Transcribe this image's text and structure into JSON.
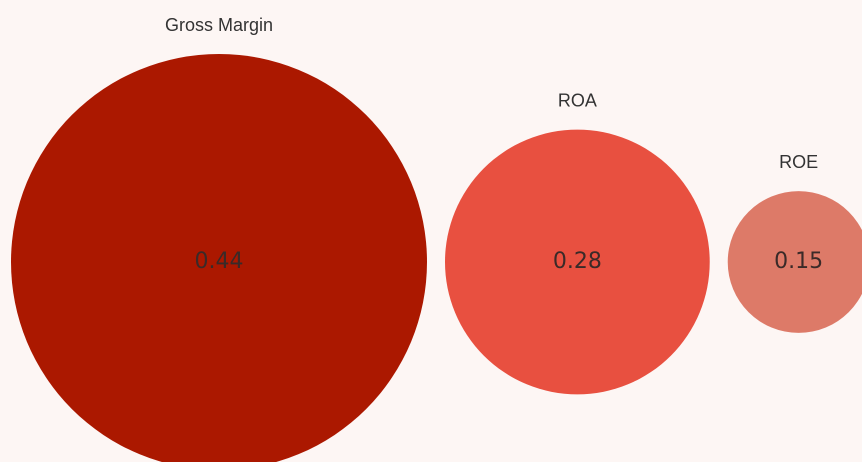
{
  "chart_data": {
    "type": "bubble",
    "categories": [
      "Gross Margin",
      "ROA",
      "ROE"
    ],
    "values": [
      0.44,
      0.28,
      0.15
    ],
    "colors": [
      "#ab1800",
      "#e85040",
      "#dd7a68"
    ]
  }
}
